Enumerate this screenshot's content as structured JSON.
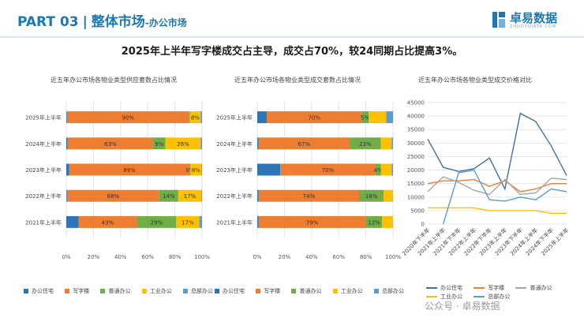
{
  "header": {
    "part": "PART 03",
    "separator": "|",
    "title": "整体市场",
    "subtitle": "-办公市场",
    "logo_name": "卓易数据",
    "logo_sub": "ZHUOYIDATA.COM"
  },
  "headline": "2025年上半年写字楼成交占主导，成交占70%，较24同期占比提高3%。",
  "watermark": "公众号 · 卓易数据",
  "colors": {
    "office_residence": "#2e75b6",
    "office_building": "#ed7d31",
    "general_office": "#70ad47",
    "industrial_office": "#ffc000",
    "hq_office": "#5b9bd5",
    "price_office_residence": "#41719c",
    "price_office_building": "#ed7d31",
    "price_general_office": "#a5a5a5",
    "price_industrial_office": "#ffc000",
    "price_hq_office": "#5b9bd5"
  },
  "chart_data": [
    {
      "type": "bar",
      "stacked": "100%",
      "orientation": "horizontal",
      "title": "近五年办公市场各物业类型供应套数占比情况",
      "categories": [
        "2021年上半年",
        "2022年上半年",
        "2023年上半年",
        "2024年上半年",
        "2025年上半年"
      ],
      "series": [
        {
          "name": "办公住宅",
          "values": [
            9,
            0.5,
            2,
            1,
            0.5
          ]
        },
        {
          "name": "写字楼",
          "values": [
            43,
            68,
            89,
            63,
            90
          ]
        },
        {
          "name": "普通办公",
          "values": [
            29,
            14,
            0.5,
            9,
            0.5
          ]
        },
        {
          "name": "工业办公",
          "values": [
            17,
            17,
            8,
            26,
            8
          ]
        },
        {
          "name": "总部办公",
          "values": [
            2,
            0.5,
            0.5,
            1,
            1
          ]
        }
      ],
      "data_labels": [
        [
          "",
          "43%",
          "29%",
          "17%",
          ""
        ],
        [
          "",
          "68%",
          "14%",
          "17%",
          ""
        ],
        [
          "",
          "89%",
          "0%",
          "8%",
          ""
        ],
        [
          "",
          "63%",
          "9%",
          "26%",
          ""
        ],
        [
          "",
          "90%",
          "",
          "8%",
          ""
        ]
      ],
      "xticks": [
        "0%",
        "20%",
        "40%",
        "60%",
        "80%",
        "100%"
      ],
      "xlim": [
        0,
        100
      ]
    },
    {
      "type": "bar",
      "stacked": "100%",
      "orientation": "horizontal",
      "title": "近五年办公市场各物业类型成交套数占比情况",
      "categories": [
        "2021年上半年",
        "2022年上半年",
        "2023年上半年",
        "2024年上半年",
        "2025年上半年"
      ],
      "series": [
        {
          "name": "办公住宅",
          "values": [
            1,
            1,
            17,
            1,
            7
          ]
        },
        {
          "name": "写字楼",
          "values": [
            79,
            74,
            70,
            67,
            70
          ]
        },
        {
          "name": "普通办公",
          "values": [
            12,
            18,
            4,
            23,
            5
          ]
        },
        {
          "name": "工业办公",
          "values": [
            8,
            7,
            8,
            8,
            13
          ]
        },
        {
          "name": "总部办公",
          "values": [
            0,
            0,
            1,
            1,
            5
          ]
        }
      ],
      "data_labels": [
        [
          "",
          "79%",
          "12%",
          "",
          ""
        ],
        [
          "",
          "74%",
          "18%",
          "",
          ""
        ],
        [
          "",
          "70%",
          "4%",
          "",
          ""
        ],
        [
          "",
          "67%",
          "23%",
          "",
          ""
        ],
        [
          "",
          "70%",
          "5%",
          "",
          ""
        ]
      ],
      "xticks": [
        "0%",
        "20%",
        "40%",
        "60%",
        "80%",
        "100%"
      ],
      "xlim": [
        0,
        100
      ]
    },
    {
      "type": "line",
      "title": "近五年办公市场各物业类型成交价格对比",
      "x": [
        "2020年下半年",
        "2021年上半年",
        "2021年下半年",
        "2022年上半年",
        "2022年下半年",
        "2023年上半年",
        "2023年下半年",
        "2024年上半年",
        "2024年下半年",
        "2025年上半年"
      ],
      "series": [
        {
          "name": "办公住宅",
          "values": [
            31500,
            21000,
            19500,
            20500,
            24500,
            13000,
            41000,
            38000,
            29000,
            18000
          ]
        },
        {
          "name": "写字楼",
          "values": [
            15000,
            16000,
            16000,
            16500,
            14000,
            16000,
            12000,
            13000,
            15000,
            15000
          ]
        },
        {
          "name": "普通办公",
          "values": [
            12000,
            17500,
            15500,
            12500,
            11000,
            16500,
            11000,
            11500,
            17000,
            16500
          ]
        },
        {
          "name": "工业办公",
          "values": [
            6000,
            6000,
            6000,
            6000,
            5000,
            5000,
            5000,
            5000,
            4000,
            4000
          ]
        },
        {
          "name": "总部办公",
          "values": [
            null,
            0,
            19000,
            20000,
            9000,
            8500,
            10000,
            9000,
            13000,
            12000
          ]
        }
      ],
      "yticks": [
        "0",
        "5000",
        "10000",
        "15000",
        "20000",
        "25000",
        "30000",
        "35000",
        "40000",
        "45000"
      ],
      "ylim": [
        0,
        45000
      ]
    }
  ],
  "legend": {
    "items": [
      "办公住宅",
      "写字楼",
      "普通办公",
      "工业办公",
      "总部办公"
    ]
  }
}
